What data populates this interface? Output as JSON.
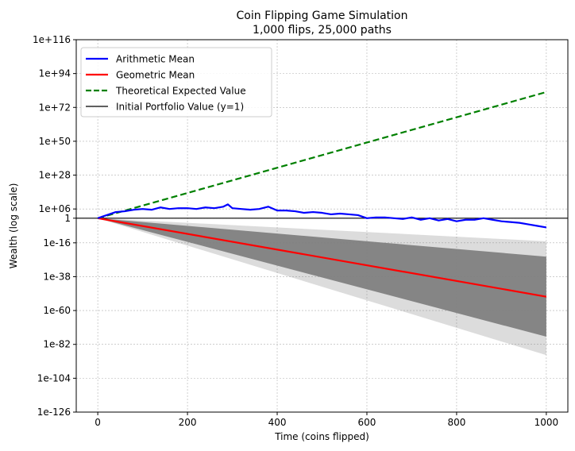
{
  "chart_data": {
    "type": "line",
    "title": "Coin Flipping Game Simulation",
    "subtitle": "1,000 flips, 25,000 paths",
    "xlabel": "Time (coins flipped)",
    "ylabel": "Wealth (log scale)",
    "xscale": "linear",
    "yscale": "log10",
    "xlim": [
      -48,
      1048
    ],
    "ylim_log10": [
      -126,
      116
    ],
    "x_ticks": [
      {
        "value": 0,
        "label": "0"
      },
      {
        "value": 200,
        "label": "200"
      },
      {
        "value": 400,
        "label": "400"
      },
      {
        "value": 600,
        "label": "600"
      },
      {
        "value": 800,
        "label": "800"
      },
      {
        "value": 1000,
        "label": "1000"
      }
    ],
    "y_ticks": [
      {
        "log10": 116,
        "label": "1e+116"
      },
      {
        "log10": 94,
        "label": "1e+94"
      },
      {
        "log10": 72,
        "label": "1e+72"
      },
      {
        "log10": 50,
        "label": "1e+50"
      },
      {
        "log10": 28,
        "label": "1e+28"
      },
      {
        "log10": 6,
        "label": "1e+06"
      },
      {
        "log10": 0,
        "label": "1"
      },
      {
        "log10": -16,
        "label": "1e-16"
      },
      {
        "log10": -38,
        "label": "1e-38"
      },
      {
        "log10": -60,
        "label": "1e-60"
      },
      {
        "log10": -82,
        "label": "1e-82"
      },
      {
        "log10": -104,
        "label": "1e-104"
      },
      {
        "log10": -126,
        "label": "1e-126"
      }
    ],
    "grid": true,
    "legend_position": "top-left",
    "series": [
      {
        "name": "Arithmetic Mean",
        "color": "#0000ff",
        "style": "solid",
        "x": [
          0,
          20,
          40,
          60,
          80,
          100,
          120,
          140,
          160,
          180,
          200,
          220,
          240,
          260,
          280,
          290,
          300,
          320,
          340,
          360,
          380,
          400,
          420,
          440,
          460,
          480,
          500,
          520,
          540,
          560,
          580,
          600,
          620,
          640,
          660,
          680,
          700,
          720,
          740,
          760,
          780,
          800,
          820,
          840,
          860,
          880,
          900,
          920,
          940,
          960,
          980,
          1000
        ],
        "log10_values": [
          0,
          2,
          4,
          4.5,
          5.5,
          6,
          5.5,
          7,
          6,
          6.5,
          6.5,
          6,
          7,
          6.5,
          7.5,
          9,
          6.5,
          6,
          5.5,
          6,
          7.5,
          5,
          5,
          4.5,
          3.5,
          4,
          3.5,
          2.5,
          3,
          2.5,
          2,
          0,
          0.5,
          0.5,
          0,
          -0.5,
          0.5,
          -1,
          0,
          -1.5,
          -0.5,
          -2,
          -1,
          -1,
          0,
          -1,
          -2,
          -2.5,
          -3,
          -4,
          -5,
          -6
        ]
      },
      {
        "name": "Geometric Mean",
        "color": "#ff0000",
        "style": "solid",
        "x": [
          0,
          1000
        ],
        "log10_values": [
          0,
          -51
        ]
      },
      {
        "name": "Theoretical Expected Value",
        "color": "#008000",
        "style": "dashed",
        "x": [
          0,
          1000
        ],
        "log10_values": [
          0,
          82
        ]
      },
      {
        "name": "Initial Portfolio Value (y=1)",
        "color": "#000000",
        "style": "solid",
        "x": [
          -48,
          1048
        ],
        "log10_values": [
          0,
          0
        ]
      }
    ],
    "path_envelope": {
      "color": "#808080",
      "dense_band": {
        "x": [
          0,
          1000
        ],
        "upper_log10": [
          0,
          -25
        ],
        "lower_log10": [
          0,
          -77
        ]
      },
      "sparse_band": {
        "x": [
          0,
          1000
        ],
        "upper_log10": [
          0,
          -15
        ],
        "lower_log10": [
          0,
          -89
        ]
      }
    }
  }
}
